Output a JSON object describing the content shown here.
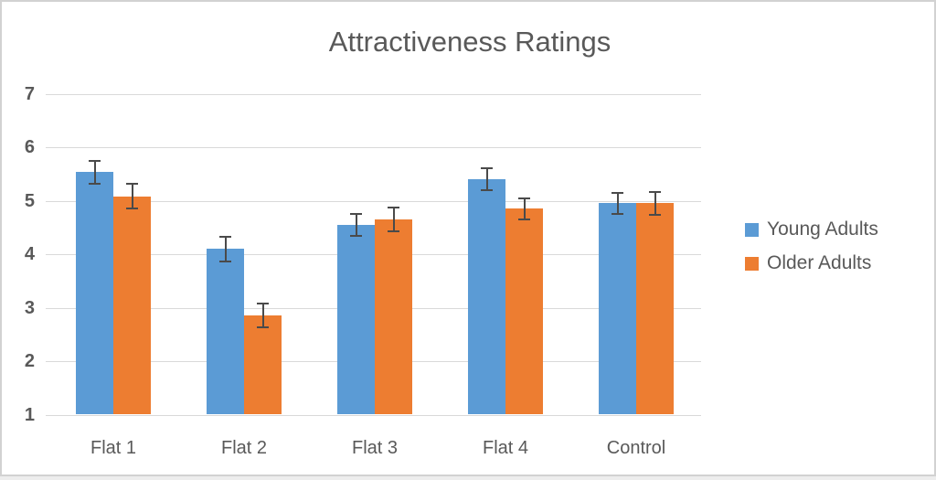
{
  "chart_data": {
    "type": "bar",
    "title": "Attractiveness Ratings",
    "categories": [
      "Flat 1",
      "Flat 2",
      "Flat 3",
      "Flat 4",
      "Control"
    ],
    "series": [
      {
        "name": "Young Adults",
        "color": "#5B9BD5",
        "values": [
          5.53,
          4.1,
          4.55,
          5.4,
          4.95
        ],
        "errors": [
          0.21,
          0.23,
          0.2,
          0.21,
          0.2
        ]
      },
      {
        "name": "Older Adults",
        "color": "#ED7D31",
        "values": [
          5.08,
          2.85,
          4.65,
          4.85,
          4.95
        ],
        "errors": [
          0.23,
          0.22,
          0.22,
          0.2,
          0.21
        ]
      }
    ],
    "xlabel": "",
    "ylabel": "",
    "y_axis": {
      "min": 1,
      "max": 7,
      "step": 1,
      "ticks": [
        7,
        6,
        5,
        4,
        3,
        2,
        1
      ]
    },
    "ylim": [
      1,
      7
    ],
    "grid": true,
    "legend_position": "right",
    "colors": {
      "text": "#595959",
      "gridline": "#d9d9d9",
      "error_bar": "#4a4a4a",
      "background": "#ffffff",
      "frame_border": "#d2d2d2"
    }
  }
}
